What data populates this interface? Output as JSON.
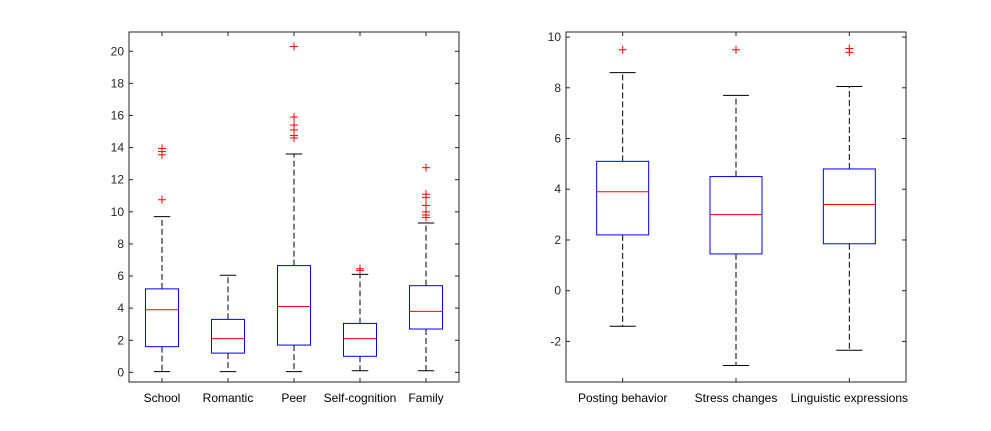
{
  "chart_data": [
    {
      "type": "box",
      "categories": [
        "School",
        "Romantic",
        "Peer",
        "Self-cognition",
        "Family"
      ],
      "ylim": [
        -0.6,
        21.2
      ],
      "yticks": [
        0,
        2,
        4,
        6,
        8,
        10,
        12,
        14,
        16,
        18,
        20
      ],
      "boxes": [
        {
          "category": "School",
          "whisker_low": 0.05,
          "q1": 1.6,
          "median": 3.9,
          "q3": 5.2,
          "whisker_high": 9.7,
          "outliers": [
            10.75,
            13.55,
            13.75,
            13.95
          ]
        },
        {
          "category": "Romantic",
          "whisker_low": 0.05,
          "q1": 1.2,
          "median": 2.1,
          "q3": 3.3,
          "whisker_high": 6.05,
          "outliers": []
        },
        {
          "category": "Peer",
          "whisker_low": 0.05,
          "q1": 1.7,
          "median": 4.1,
          "q3": 6.65,
          "whisker_high": 13.6,
          "outliers": [
            14.6,
            14.75,
            15.1,
            15.4,
            15.9,
            20.3
          ]
        },
        {
          "category": "Self-cognition",
          "whisker_low": 0.1,
          "q1": 1.0,
          "median": 2.1,
          "q3": 3.05,
          "whisker_high": 6.1,
          "outliers": [
            6.35,
            6.45
          ]
        },
        {
          "category": "Family",
          "whisker_low": 0.1,
          "q1": 2.7,
          "median": 3.8,
          "q3": 5.4,
          "whisker_high": 9.3,
          "outliers": [
            9.65,
            9.8,
            10.0,
            10.4,
            10.9,
            11.1,
            12.75
          ]
        }
      ]
    },
    {
      "type": "box",
      "categories": [
        "Posting behavior",
        "Stress changes",
        "Linguistic expressions"
      ],
      "ylim": [
        -3.6,
        10.2
      ],
      "yticks": [
        -2,
        0,
        2,
        4,
        6,
        8,
        10
      ],
      "boxes": [
        {
          "category": "Posting behavior",
          "whisker_low": -1.4,
          "q1": 2.2,
          "median": 3.9,
          "q3": 5.1,
          "whisker_high": 8.6,
          "outliers": [
            9.5
          ]
        },
        {
          "category": "Stress changes",
          "whisker_low": -2.95,
          "q1": 1.45,
          "median": 3.0,
          "q3": 4.5,
          "whisker_high": 7.7,
          "outliers": [
            9.5
          ]
        },
        {
          "category": "Linguistic expressions",
          "whisker_low": -2.35,
          "q1": 1.85,
          "median": 3.4,
          "q3": 4.8,
          "whisker_high": 8.05,
          "outliers": [
            9.4,
            9.55
          ]
        }
      ]
    }
  ],
  "colors": {
    "box": "#0000ff",
    "median": "#ff0000",
    "whisker": "#000000",
    "outlier": "#ff0000",
    "axis": "#262626"
  }
}
